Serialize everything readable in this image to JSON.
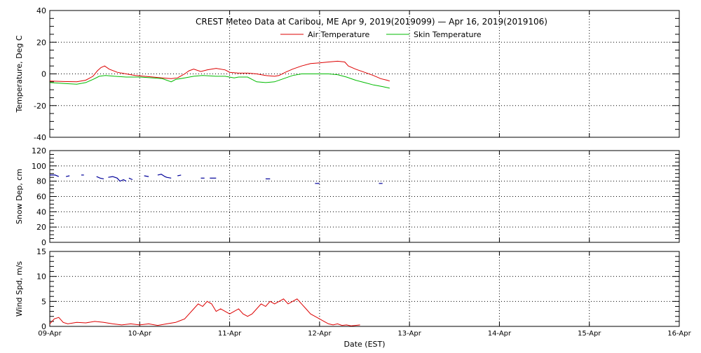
{
  "title": "CREST Meteo Data at Caribou, ME   Apr  9, 2019(2019099) — Apr 16, 2019(2019106)",
  "colors": {
    "air": "#dd0000",
    "skin": "#00bb00",
    "snow": "#000099",
    "wind": "#dd0000",
    "grid": "#000000",
    "axis": "#000000"
  },
  "chart_data": [
    {
      "type": "line",
      "panel": "temperature",
      "title": "CREST Meteo Data at Caribou, ME   Apr  9, 2019(2019099) — Apr 16, 2019(2019106)",
      "ylabel": "Temperature, Deg C",
      "xlabel": "",
      "x_unit": "days since 09-Apr",
      "xlim": [
        0,
        7
      ],
      "ylim": [
        -40,
        40
      ],
      "yticks": [
        -40,
        -20,
        0,
        20,
        40
      ],
      "grid": true,
      "legend": "top-center",
      "series": [
        {
          "name": "Air Temperature",
          "color_key": "air",
          "points": [
            [
              0.0,
              -4.5
            ],
            [
              0.15,
              -4.8
            ],
            [
              0.3,
              -5.0
            ],
            [
              0.4,
              -4.0
            ],
            [
              0.48,
              -1.5
            ],
            [
              0.53,
              2.0
            ],
            [
              0.57,
              4.0
            ],
            [
              0.61,
              5.0
            ],
            [
              0.66,
              3.0
            ],
            [
              0.75,
              1.0
            ],
            [
              0.85,
              0.0
            ],
            [
              0.95,
              -1.0
            ],
            [
              1.05,
              -1.5
            ],
            [
              1.15,
              -2.0
            ],
            [
              1.25,
              -2.5
            ],
            [
              1.35,
              -3.0
            ],
            [
              1.42,
              -2.5
            ],
            [
              1.5,
              0.0
            ],
            [
              1.55,
              2.0
            ],
            [
              1.6,
              3.0
            ],
            [
              1.68,
              1.5
            ],
            [
              1.75,
              2.5
            ],
            [
              1.85,
              3.5
            ],
            [
              1.95,
              2.5
            ],
            [
              2.0,
              1.0
            ],
            [
              2.1,
              0.5
            ],
            [
              2.2,
              0.5
            ],
            [
              2.3,
              0.0
            ],
            [
              2.4,
              -1.0
            ],
            [
              2.5,
              -1.5
            ],
            [
              2.55,
              -1.0
            ],
            [
              2.62,
              1.0
            ],
            [
              2.7,
              3.0
            ],
            [
              2.8,
              5.0
            ],
            [
              2.9,
              6.5
            ],
            [
              3.0,
              7.0
            ],
            [
              3.1,
              7.5
            ],
            [
              3.2,
              8.0
            ],
            [
              3.28,
              7.5
            ],
            [
              3.32,
              5.0
            ],
            [
              3.4,
              3.0
            ],
            [
              3.5,
              1.0
            ],
            [
              3.6,
              -1.0
            ],
            [
              3.68,
              -3.0
            ],
            [
              3.75,
              -4.0
            ],
            [
              3.78,
              -4.5
            ]
          ]
        },
        {
          "name": "Skin Temperature",
          "color_key": "skin",
          "points": [
            [
              0.0,
              -5.5
            ],
            [
              0.15,
              -6.0
            ],
            [
              0.3,
              -6.5
            ],
            [
              0.4,
              -5.5
            ],
            [
              0.48,
              -3.5
            ],
            [
              0.55,
              -1.5
            ],
            [
              0.62,
              -1.0
            ],
            [
              0.72,
              -1.5
            ],
            [
              0.85,
              -2.0
            ],
            [
              1.0,
              -2.0
            ],
            [
              1.15,
              -2.5
            ],
            [
              1.25,
              -3.0
            ],
            [
              1.3,
              -4.0
            ],
            [
              1.35,
              -5.0
            ],
            [
              1.4,
              -3.5
            ],
            [
              1.5,
              -2.5
            ],
            [
              1.6,
              -1.5
            ],
            [
              1.7,
              -1.0
            ],
            [
              1.85,
              -1.5
            ],
            [
              1.95,
              -1.5
            ],
            [
              2.05,
              -2.5
            ],
            [
              2.1,
              -2.0
            ],
            [
              2.2,
              -2.0
            ],
            [
              2.3,
              -5.0
            ],
            [
              2.4,
              -5.5
            ],
            [
              2.5,
              -5.0
            ],
            [
              2.6,
              -3.0
            ],
            [
              2.7,
              -1.0
            ],
            [
              2.8,
              0.0
            ],
            [
              2.95,
              0.0
            ],
            [
              3.1,
              0.0
            ],
            [
              3.2,
              -0.5
            ],
            [
              3.3,
              -2.0
            ],
            [
              3.4,
              -4.0
            ],
            [
              3.5,
              -5.5
            ],
            [
              3.6,
              -7.0
            ],
            [
              3.7,
              -8.0
            ],
            [
              3.78,
              -9.0
            ]
          ]
        }
      ]
    },
    {
      "type": "scatter",
      "panel": "snow",
      "ylabel": "Snow Dep, cm",
      "xlabel": "",
      "x_unit": "days since 09-Apr",
      "xlim": [
        0,
        7
      ],
      "ylim": [
        0,
        120
      ],
      "yticks": [
        0,
        20,
        40,
        60,
        80,
        100,
        120
      ],
      "grid": true,
      "series": [
        {
          "name": "",
          "color_key": "snow",
          "segments": [
            [
              [
                0.0,
                88
              ],
              [
                0.06,
                88
              ],
              [
                0.1,
                86
              ]
            ],
            [
              [
                0.18,
                86
              ],
              [
                0.22,
                87
              ]
            ],
            [
              [
                0.35,
                88
              ],
              [
                0.38,
                88
              ]
            ],
            [
              [
                0.52,
                86
              ],
              [
                0.56,
                84
              ],
              [
                0.6,
                83
              ]
            ],
            [
              [
                0.65,
                85
              ],
              [
                0.7,
                86
              ],
              [
                0.75,
                84
              ],
              [
                0.78,
                80
              ],
              [
                0.82,
                82
              ],
              [
                0.85,
                80
              ]
            ],
            [
              [
                0.88,
                84
              ],
              [
                0.92,
                82
              ]
            ],
            [
              [
                1.05,
                87
              ],
              [
                1.1,
                86
              ]
            ],
            [
              [
                1.2,
                88
              ],
              [
                1.24,
                89
              ],
              [
                1.28,
                86
              ],
              [
                1.3,
                85
              ],
              [
                1.35,
                84
              ]
            ],
            [
              [
                1.42,
                87
              ],
              [
                1.46,
                88
              ]
            ],
            [
              [
                1.68,
                84
              ],
              [
                1.72,
                84
              ]
            ],
            [
              [
                1.78,
                84
              ],
              [
                1.85,
                84
              ]
            ],
            [
              [
                2.4,
                83
              ],
              [
                2.45,
                83
              ]
            ],
            [
              [
                2.95,
                77
              ],
              [
                3.0,
                77
              ]
            ],
            [
              [
                3.66,
                77
              ],
              [
                3.7,
                77
              ]
            ]
          ]
        }
      ]
    },
    {
      "type": "line",
      "panel": "wind",
      "ylabel": "Wind Spd, m/s",
      "xlabel": "Date (EST)",
      "x_unit": "days since 09-Apr",
      "xlim": [
        0,
        7
      ],
      "ylim": [
        0,
        15
      ],
      "yticks": [
        0,
        5,
        10,
        15
      ],
      "categories": [
        "09-Apr",
        "10-Apr",
        "11-Apr",
        "12-Apr",
        "13-Apr",
        "14-Apr",
        "15-Apr",
        "16-Apr"
      ],
      "grid": true,
      "series": [
        {
          "name": "",
          "color_key": "wind",
          "points": [
            [
              0.0,
              0.5
            ],
            [
              0.05,
              1.5
            ],
            [
              0.1,
              1.8
            ],
            [
              0.15,
              0.8
            ],
            [
              0.2,
              0.5
            ],
            [
              0.3,
              0.8
            ],
            [
              0.4,
              0.7
            ],
            [
              0.5,
              1.0
            ],
            [
              0.6,
              0.8
            ],
            [
              0.7,
              0.5
            ],
            [
              0.8,
              0.3
            ],
            [
              0.9,
              0.5
            ],
            [
              1.0,
              0.3
            ],
            [
              1.1,
              0.5
            ],
            [
              1.2,
              0.2
            ],
            [
              1.3,
              0.5
            ],
            [
              1.4,
              0.8
            ],
            [
              1.5,
              1.5
            ],
            [
              1.55,
              2.5
            ],
            [
              1.6,
              3.5
            ],
            [
              1.65,
              4.5
            ],
            [
              1.7,
              4.0
            ],
            [
              1.75,
              5.0
            ],
            [
              1.8,
              4.5
            ],
            [
              1.85,
              3.0
            ],
            [
              1.9,
              3.5
            ],
            [
              1.95,
              3.0
            ],
            [
              2.0,
              2.5
            ],
            [
              2.05,
              3.0
            ],
            [
              2.1,
              3.5
            ],
            [
              2.15,
              2.5
            ],
            [
              2.2,
              2.0
            ],
            [
              2.25,
              2.5
            ],
            [
              2.3,
              3.5
            ],
            [
              2.35,
              4.5
            ],
            [
              2.4,
              4.0
            ],
            [
              2.45,
              5.0
            ],
            [
              2.5,
              4.5
            ],
            [
              2.55,
              5.0
            ],
            [
              2.6,
              5.5
            ],
            [
              2.65,
              4.5
            ],
            [
              2.7,
              5.0
            ],
            [
              2.75,
              5.5
            ],
            [
              2.8,
              4.5
            ],
            [
              2.85,
              3.5
            ],
            [
              2.9,
              2.5
            ],
            [
              2.95,
              2.0
            ],
            [
              3.0,
              1.5
            ],
            [
              3.05,
              1.0
            ],
            [
              3.1,
              0.5
            ],
            [
              3.15,
              0.3
            ],
            [
              3.2,
              0.5
            ],
            [
              3.25,
              0.2
            ],
            [
              3.3,
              0.3
            ],
            [
              3.35,
              0.1
            ],
            [
              3.4,
              0.2
            ],
            [
              3.45,
              0.3
            ]
          ]
        }
      ]
    }
  ]
}
